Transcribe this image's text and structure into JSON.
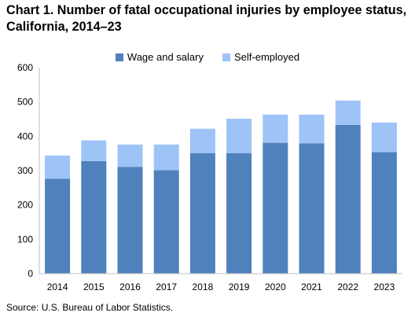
{
  "title": "Chart 1. Number of fatal occupational injuries by employee status, California, 2014–23",
  "source": "Source: U.S. Bureau of Labor Statistics.",
  "colors": {
    "wage": "#4f81bd",
    "self": "#9dc3f7",
    "axis": "#bfbfbf"
  },
  "chart_data": {
    "type": "bar",
    "stacked": true,
    "categories": [
      "2014",
      "2015",
      "2016",
      "2017",
      "2018",
      "2019",
      "2020",
      "2021",
      "2022",
      "2023"
    ],
    "series": [
      {
        "name": "Wage and salary",
        "values": [
          276,
          328,
          311,
          301,
          351,
          351,
          381,
          379,
          433,
          354
        ]
      },
      {
        "name": "Self-employed",
        "values": [
          68,
          60,
          65,
          75,
          71,
          100,
          82,
          84,
          71,
          86
        ]
      }
    ],
    "ylim": [
      0,
      600
    ],
    "yticks": [
      0,
      100,
      200,
      300,
      400,
      500,
      600
    ],
    "xlabel": "",
    "ylabel": "",
    "legend": "top-center",
    "grid": false
  }
}
